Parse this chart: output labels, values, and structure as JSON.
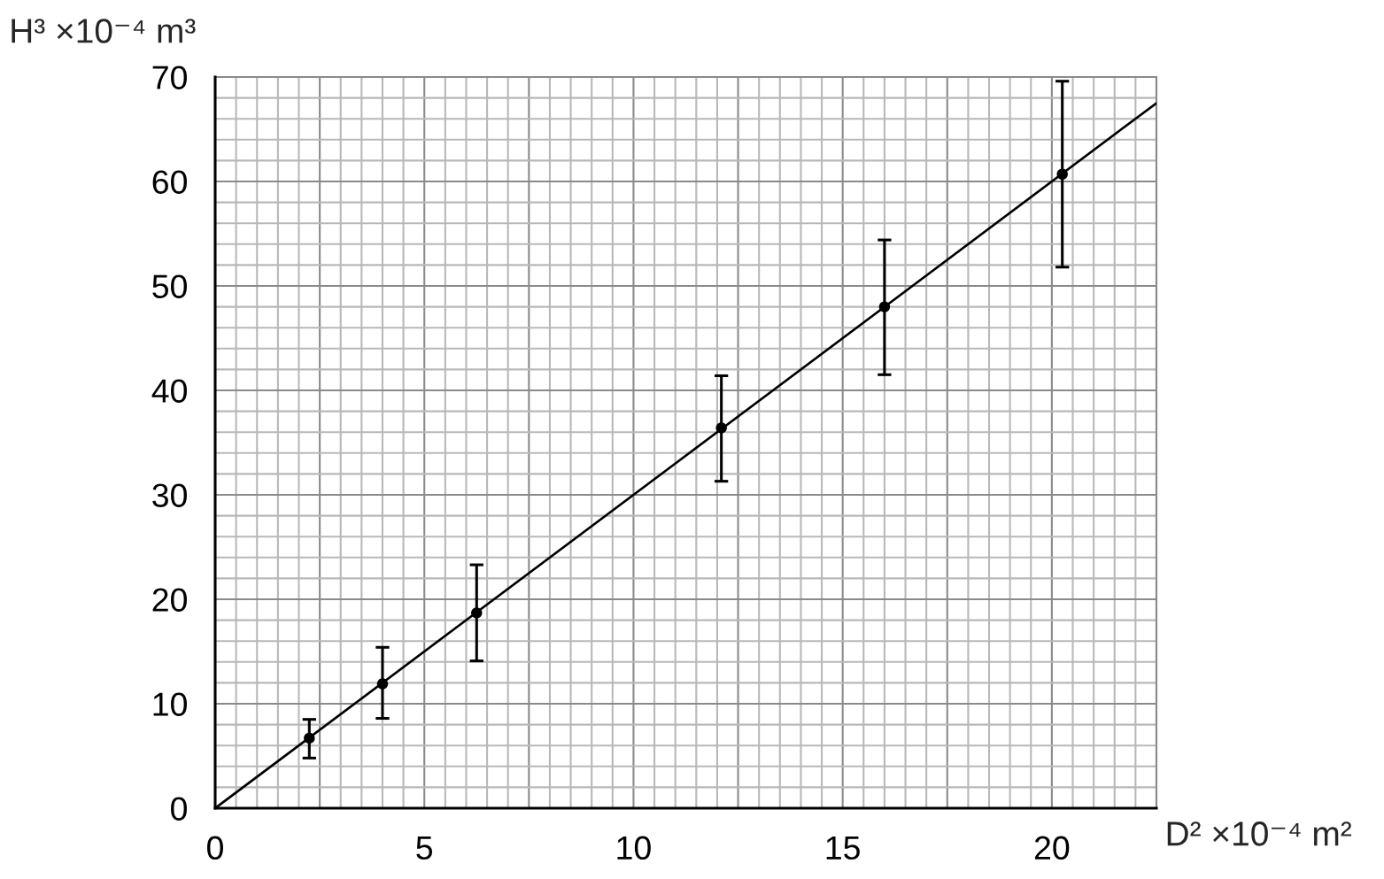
{
  "chart_data": {
    "type": "scatter",
    "xlabel": "D² ×10⁻⁴ m²",
    "ylabel": "H³ ×10⁻⁴ m³",
    "xlim": [
      0,
      22.5
    ],
    "ylim": [
      0,
      70
    ],
    "xticks": [
      0,
      {
        "value": 2.5,
        "label": null
      },
      5,
      {
        "value": 7.5,
        "label": null
      },
      10,
      {
        "value": 12.5,
        "label": null
      },
      15,
      {
        "value": 17.5,
        "label": null
      },
      20,
      {
        "value": 22.5,
        "label": null
      }
    ],
    "yticks": [
      0,
      10,
      20,
      30,
      40,
      50,
      60,
      70
    ],
    "grid": true,
    "series": [
      {
        "color": "#000000",
        "marker": "circle",
        "x": [
          2.25,
          4.0,
          6.25,
          12.1,
          16.0,
          20.25
        ],
        "values": [
          6.7,
          11.9,
          18.7,
          36.4,
          48.0,
          60.7
        ],
        "errors": [
          [
            4.8,
            8.5
          ],
          [
            8.6,
            15.4
          ],
          [
            14.1,
            23.3
          ],
          [
            31.3,
            41.4
          ],
          [
            41.5,
            54.4
          ],
          [
            51.8,
            69.6
          ]
        ]
      },
      {
        "type": "line",
        "color": "#000000",
        "x": [
          0,
          22.5
        ],
        "values": [
          0,
          67.5
        ]
      }
    ]
  }
}
